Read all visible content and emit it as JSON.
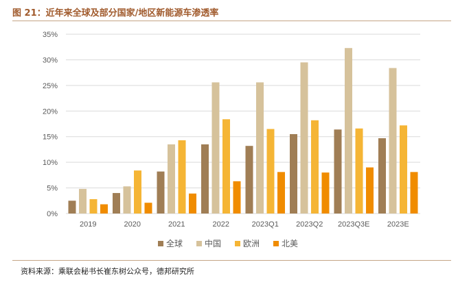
{
  "figure": {
    "title": "图 21：近年来全球及部分国家/地区新能源车渗透率",
    "source": "资料来源：乘联会秘书长崔东树公众号，德邦研究所"
  },
  "colors": {
    "title": "#a05a2c",
    "rule": "#c4a484",
    "grid": "#d9d9d9",
    "axis_text": "#595959"
  },
  "chart_data": {
    "type": "bar",
    "title": "近年来全球及部分国家/地区新能源车渗透率",
    "xlabel": "",
    "ylabel": "",
    "categories": [
      "2019",
      "2020",
      "2021",
      "2022",
      "2023Q1",
      "2023Q2",
      "2023Q3E",
      "2023E"
    ],
    "ylim": [
      0,
      35
    ],
    "yticks": [
      0,
      5,
      10,
      15,
      20,
      25,
      30,
      35
    ],
    "ytick_labels": [
      "0%",
      "5%",
      "10%",
      "15%",
      "20%",
      "25%",
      "30%",
      "35%"
    ],
    "grid": true,
    "legend_position": "bottom",
    "series": [
      {
        "name": "全球",
        "color": "#a07e55",
        "values": [
          2.5,
          4.0,
          8.2,
          13.5,
          13.2,
          15.5,
          16.4,
          14.7
        ]
      },
      {
        "name": "中国",
        "color": "#d6c29b",
        "values": [
          4.8,
          5.3,
          13.5,
          25.6,
          25.6,
          29.5,
          32.3,
          28.4
        ]
      },
      {
        "name": "欧洲",
        "color": "#f5b535",
        "values": [
          2.8,
          8.4,
          14.3,
          18.4,
          16.5,
          18.2,
          16.6,
          17.2
        ]
      },
      {
        "name": "北美",
        "color": "#f08c00",
        "values": [
          1.8,
          2.1,
          3.9,
          6.3,
          8.1,
          8.0,
          9.0,
          8.1
        ]
      }
    ]
  }
}
